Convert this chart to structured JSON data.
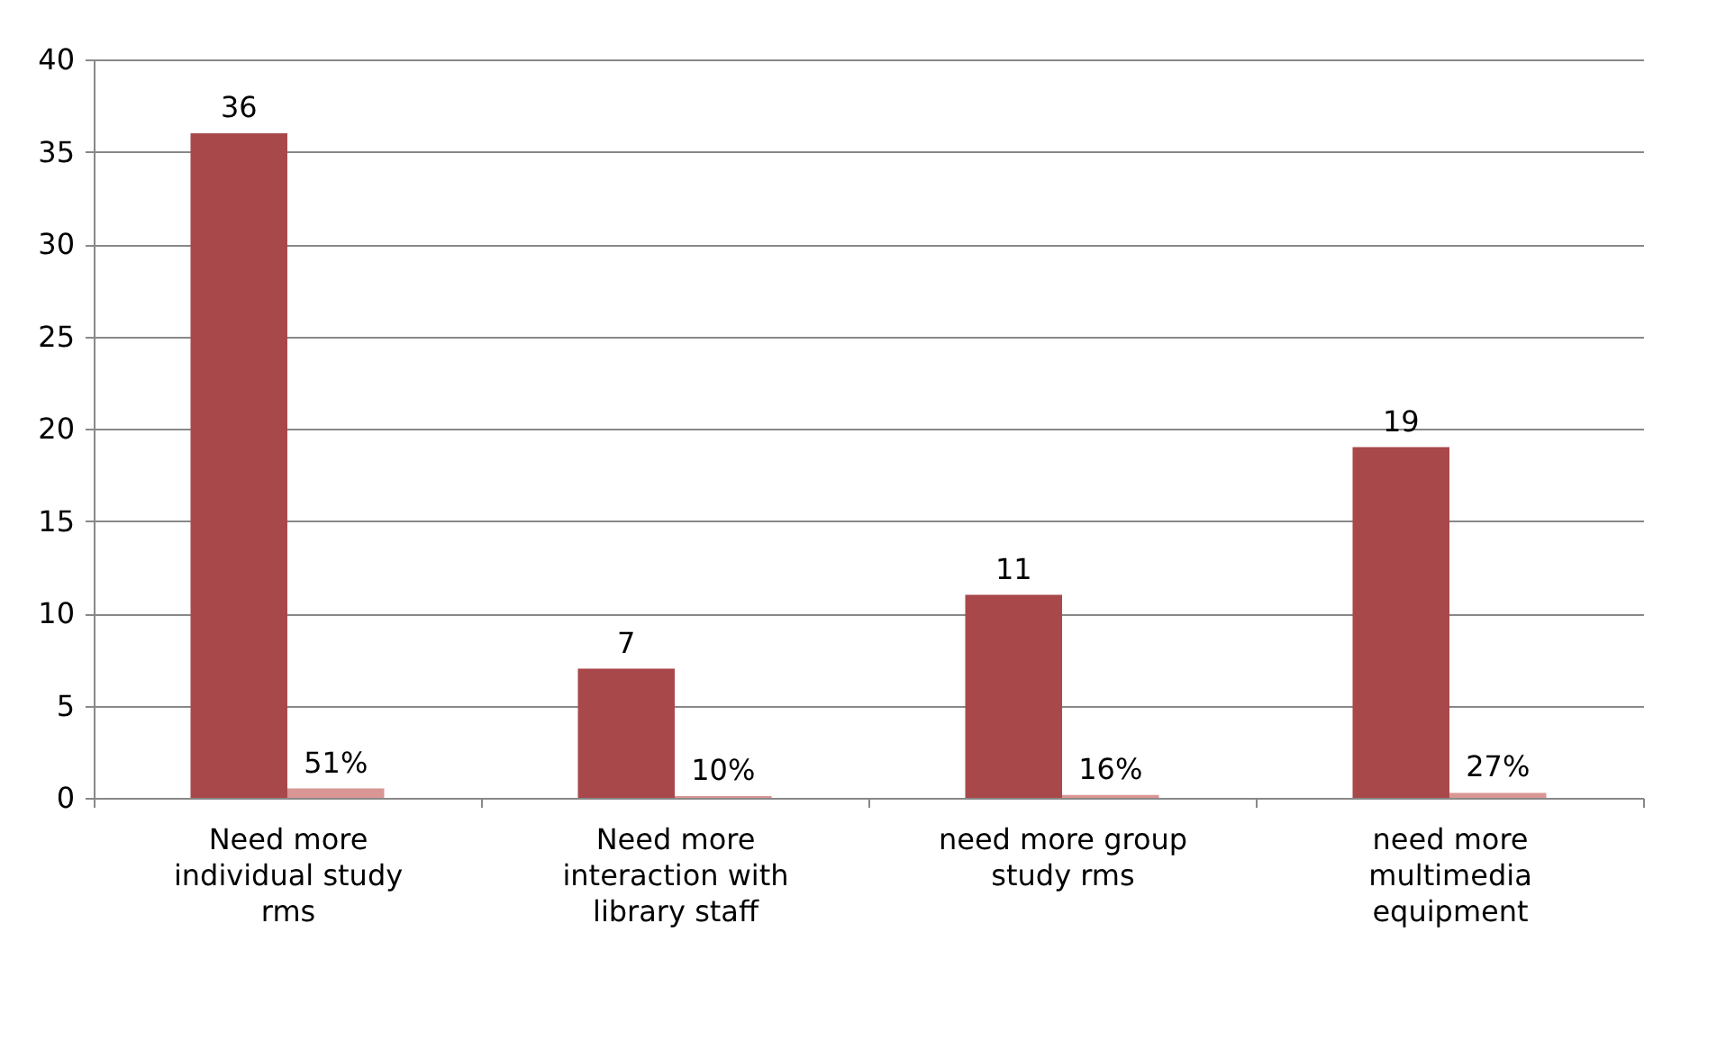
{
  "chart_data": {
    "type": "bar",
    "categories": [
      "Need more individual study rms",
      "Need more interaction with library staff",
      "need more group study rms",
      "need more multimedia equipment"
    ],
    "series": [
      {
        "color": "#a9484a",
        "values": [
          36,
          7,
          11,
          19
        ],
        "value_labels": [
          "36",
          "7",
          "11",
          "19"
        ]
      },
      {
        "color": "#d99694",
        "values": [
          0.51,
          0.1,
          0.16,
          0.27
        ],
        "value_labels": [
          "51%",
          "10%",
          "16%",
          "27%"
        ]
      }
    ],
    "ylim": [
      0,
      40
    ],
    "yticks": [
      0,
      5,
      10,
      15,
      20,
      25,
      30,
      35,
      40
    ],
    "grid": "y",
    "legend": false
  }
}
